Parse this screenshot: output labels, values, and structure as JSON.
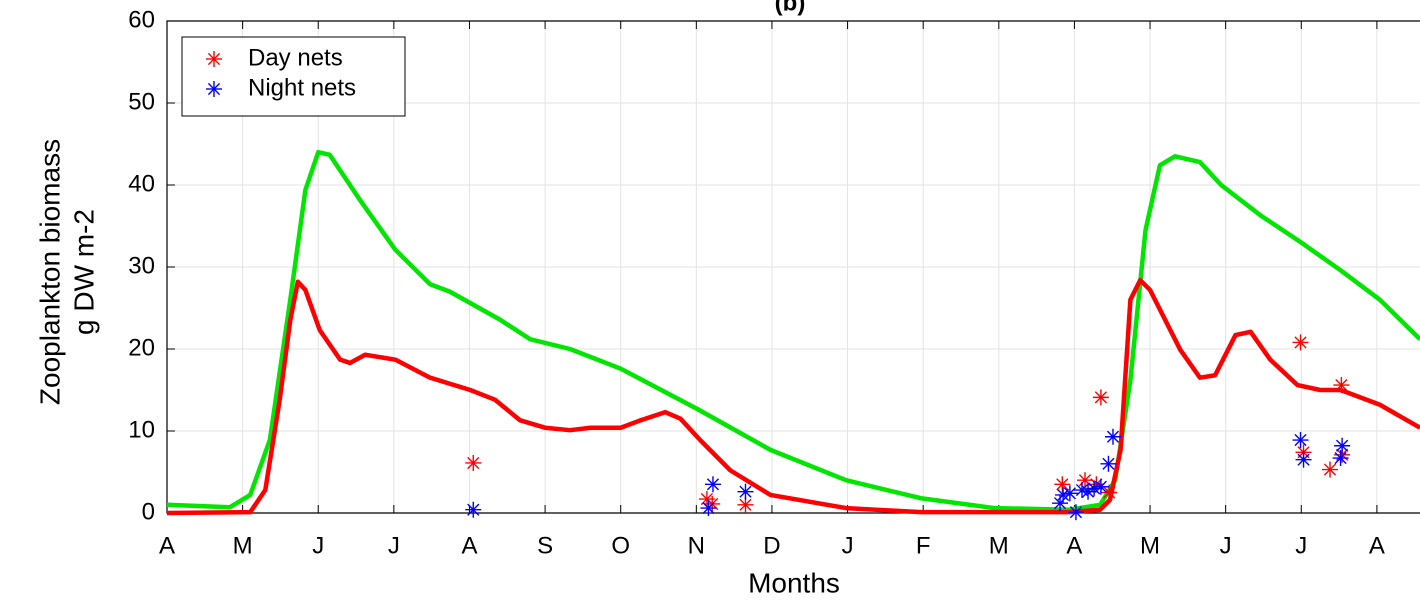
{
  "chart_data": {
    "type": "line",
    "title": "(b)",
    "xlabel": "Months",
    "ylabel": [
      "Zooplankton biomass",
      "g DW m-2"
    ],
    "xlim": [
      0,
      16.57
    ],
    "ylim": [
      0,
      60
    ],
    "xticks": [
      {
        "value": 0,
        "label": "A"
      },
      {
        "value": 1,
        "label": "M"
      },
      {
        "value": 2,
        "label": "J"
      },
      {
        "value": 3,
        "label": "J"
      },
      {
        "value": 4,
        "label": "A"
      },
      {
        "value": 5,
        "label": "S"
      },
      {
        "value": 6,
        "label": "O"
      },
      {
        "value": 7,
        "label": "N"
      },
      {
        "value": 8,
        "label": "D"
      },
      {
        "value": 9,
        "label": "J"
      },
      {
        "value": 10,
        "label": "F"
      },
      {
        "value": 11,
        "label": "M"
      },
      {
        "value": 12,
        "label": "A"
      },
      {
        "value": 13,
        "label": "M"
      },
      {
        "value": 14,
        "label": "J"
      },
      {
        "value": 15,
        "label": "J"
      },
      {
        "value": 16,
        "label": "A"
      }
    ],
    "yticks": [
      0,
      10,
      20,
      30,
      40,
      50,
      60
    ],
    "grid": true,
    "legend_position": "upper-left",
    "series": [
      {
        "style": "line",
        "color": "#00e600",
        "x": [
          0,
          0.83,
          1.1,
          1.36,
          1.63,
          1.83,
          2.0,
          2.15,
          2.55,
          3.02,
          3.48,
          3.74,
          4.4,
          4.8,
          5.33,
          6.0,
          7.01,
          7.98,
          8.98,
          9.97,
          10.94,
          11.93,
          12.34,
          12.54,
          12.74,
          12.94,
          13.13,
          13.33,
          13.66,
          13.94,
          14.46,
          14.95,
          15.52,
          16.04,
          16.57
        ],
        "values": [
          1.0,
          0.7,
          2.2,
          8.9,
          26.0,
          39.4,
          44.0,
          43.7,
          38.2,
          32.1,
          27.9,
          27.0,
          23.6,
          21.2,
          20.0,
          17.6,
          12.7,
          7.7,
          4.0,
          1.8,
          0.6,
          0.4,
          1.0,
          4.0,
          16.2,
          34.5,
          42.4,
          43.5,
          42.8,
          40.0,
          36.3,
          33.3,
          29.6,
          26.0,
          21.2
        ]
      },
      {
        "style": "line",
        "color": "#ff0000",
        "x": [
          0,
          1.1,
          1.3,
          1.49,
          1.63,
          1.73,
          1.83,
          2.02,
          2.29,
          2.42,
          2.62,
          3.02,
          3.48,
          4.01,
          4.34,
          4.67,
          5.0,
          5.33,
          5.6,
          6.0,
          6.26,
          6.59,
          6.79,
          7.05,
          7.45,
          7.98,
          8.98,
          9.97,
          11.93,
          12.34,
          12.47,
          12.61,
          12.74,
          12.87,
          13.0,
          13.4,
          13.66,
          13.86,
          14.13,
          14.33,
          14.59,
          14.95,
          15.25,
          15.52,
          16.04,
          16.57
        ],
        "values": [
          0,
          0.1,
          2.8,
          13.8,
          23.5,
          28.2,
          27.2,
          22.3,
          18.7,
          18.3,
          19.3,
          18.7,
          16.5,
          15.0,
          13.8,
          11.3,
          10.4,
          10.1,
          10.4,
          10.4,
          11.3,
          12.3,
          11.5,
          8.9,
          5.2,
          2.2,
          0.6,
          0.1,
          0.1,
          0.4,
          1.6,
          7.7,
          26.0,
          28.4,
          27.2,
          19.9,
          16.5,
          16.8,
          21.7,
          22.1,
          18.7,
          15.6,
          15.0,
          15.0,
          13.2,
          10.4
        ]
      },
      {
        "name": "Day nets",
        "style": "marker",
        "color": "#ff0000",
        "x": [
          4.05,
          7.14,
          7.21,
          7.65,
          11.84,
          12.14,
          12.29,
          12.35,
          12.46,
          14.99,
          15.03,
          15.38,
          15.53,
          15.54
        ],
        "values": [
          6.1,
          1.7,
          1.1,
          1.0,
          3.5,
          4.0,
          3.5,
          14.1,
          2.5,
          20.8,
          7.4,
          5.3,
          15.6,
          7.1
        ]
      },
      {
        "name": "Night nets",
        "style": "marker",
        "color": "#0000ff",
        "x": [
          4.05,
          7.16,
          7.22,
          7.65,
          11.81,
          11.85,
          11.94,
          12.02,
          12.1,
          12.18,
          12.26,
          12.35,
          12.45,
          12.51,
          14.99,
          15.03,
          15.52,
          15.54
        ],
        "values": [
          0.4,
          0.6,
          3.5,
          2.6,
          1.2,
          2.2,
          2.4,
          0.1,
          2.8,
          2.6,
          3.0,
          3.2,
          6.0,
          9.3,
          8.9,
          6.5,
          6.7,
          8.2
        ]
      }
    ]
  }
}
